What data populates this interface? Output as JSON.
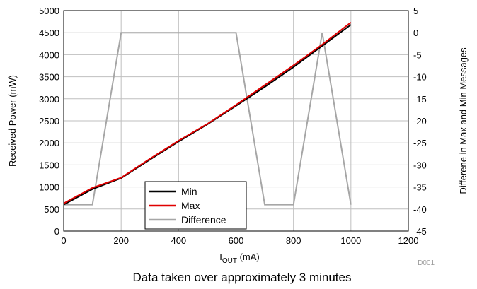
{
  "chart_data": {
    "type": "line",
    "xlabel_main": "I",
    "xlabel_sub": "OUT",
    "xlabel_unit": " (mA)",
    "ylabel": "Received Power (mW)",
    "y2label": "Differene in Max and Min Messages",
    "caption": "Data taken over approximately 3 minutes",
    "figure_code": "D001",
    "xlim": [
      0,
      1200
    ],
    "ylim": [
      0,
      5000
    ],
    "y2lim": [
      -45,
      5
    ],
    "x_ticks": [
      0,
      200,
      400,
      600,
      800,
      1000,
      1200
    ],
    "y_ticks": [
      0,
      500,
      1000,
      1500,
      2000,
      2500,
      3000,
      3500,
      4000,
      4500,
      5000
    ],
    "y2_ticks": [
      -45,
      -40,
      -35,
      -30,
      -25,
      -20,
      -15,
      -10,
      -5,
      0,
      5
    ],
    "grid": true,
    "legend_position": "bottom-center",
    "series": [
      {
        "name": "Min",
        "axis": "left",
        "color": "#000000",
        "x": [
          0,
          100,
          200,
          300,
          400,
          500,
          600,
          700,
          800,
          900,
          1000
        ],
        "y": [
          600,
          950,
          1200,
          1620,
          2030,
          2420,
          2840,
          3270,
          3720,
          4200,
          4680
        ]
      },
      {
        "name": "Max",
        "axis": "left",
        "color": "#e00000",
        "x": [
          0,
          100,
          200,
          300,
          400,
          500,
          600,
          700,
          800,
          900,
          1000
        ],
        "y": [
          630,
          980,
          1210,
          1640,
          2050,
          2430,
          2860,
          3310,
          3760,
          4230,
          4730
        ]
      },
      {
        "name": "Difference",
        "axis": "right",
        "color": "#a6a6a6",
        "x": [
          0,
          100,
          200,
          300,
          400,
          500,
          600,
          700,
          800,
          900,
          1000
        ],
        "y": [
          -39,
          -39,
          0,
          0,
          0,
          0,
          0,
          -39,
          -39,
          0,
          -39
        ]
      }
    ]
  }
}
